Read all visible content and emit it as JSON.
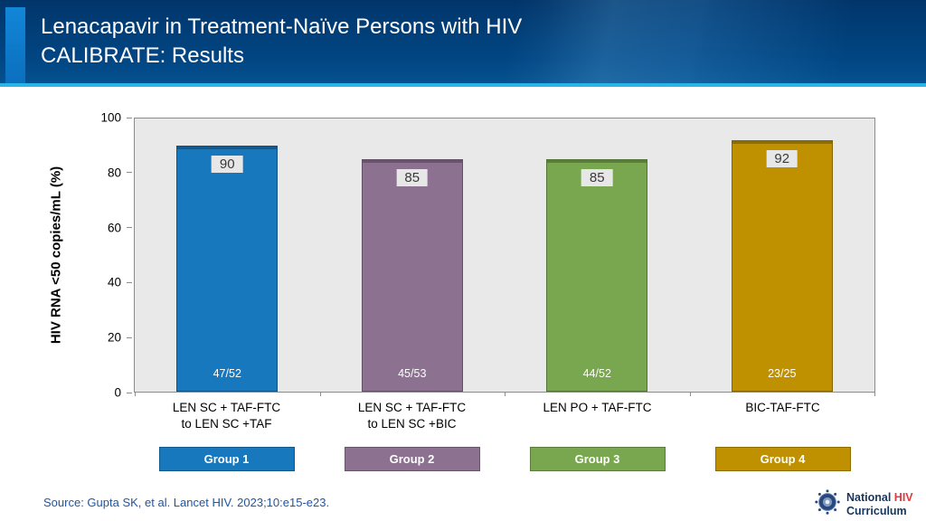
{
  "header": {
    "title_line1": "Lenacapavir in Treatment-Naïve Persons with HIV",
    "title_line2": "CALIBRATE: Results",
    "accent_color": "#2ab5e9"
  },
  "chart_data": {
    "type": "bar",
    "title": "",
    "xlabel": "",
    "ylabel": "HIV RNA <50 copies/mL (%)",
    "ylim": [
      0,
      100
    ],
    "yticks": [
      0,
      20,
      40,
      60,
      80,
      100
    ],
    "grid": false,
    "legend_position": "bottom",
    "categories": [
      [
        "LEN SC + TAF-FTC",
        "to LEN SC +TAF"
      ],
      [
        "LEN SC + TAF-FTC",
        "to LEN SC +BIC"
      ],
      [
        "LEN PO + TAF-FTC"
      ],
      [
        "BIC-TAF-FTC"
      ]
    ],
    "values": [
      90,
      85,
      85,
      92
    ],
    "bar_annotations": [
      "47/52",
      "45/53",
      "44/52",
      "23/25"
    ],
    "series_colors": [
      "#1878be",
      "#8c7191",
      "#79a74f",
      "#bf9000"
    ],
    "legend": [
      {
        "label": "Group 1",
        "color": "#1878be"
      },
      {
        "label": "Group 2",
        "color": "#8c7191"
      },
      {
        "label": "Group 3",
        "color": "#79a74f"
      },
      {
        "label": "Group 4",
        "color": "#bf9000"
      }
    ]
  },
  "footer": {
    "source": "Source: Gupta SK, et al. Lancet HIV. 2023;10:e15-e23.",
    "logo": {
      "word1": "National",
      "word2": "HIV",
      "word3": "Curriculum",
      "hiv_color": "#e0393e",
      "navy_color": "#17365d"
    }
  }
}
